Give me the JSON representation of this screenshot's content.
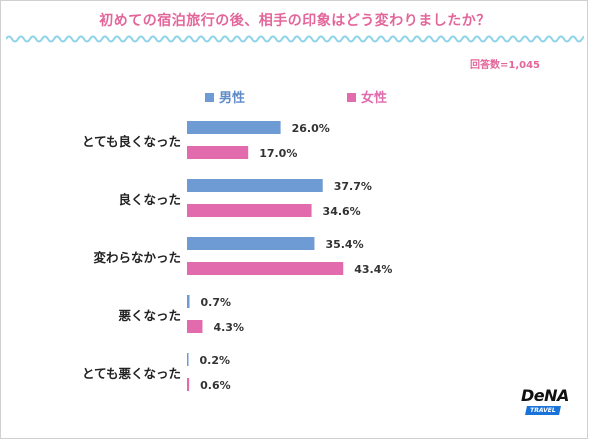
{
  "chart_data": {
    "type": "bar",
    "orientation": "horizontal",
    "title": "初めての宿泊旅行の後、相手の印象はどう変わりましたか？",
    "note": "回答数=1,045",
    "categories": [
      "とても良くなった",
      "良くなった",
      "変わらなかった",
      "悪くなった",
      "とても悪くなった"
    ],
    "series": [
      {
        "name": "男性",
        "color": "#6f9bd4",
        "values": [
          26.0,
          37.7,
          35.4,
          0.7,
          0.2
        ]
      },
      {
        "name": "女性",
        "color": "#e16bad",
        "values": [
          17.0,
          34.6,
          43.4,
          4.3,
          0.6
        ]
      }
    ],
    "value_suffix": "%",
    "legend_position": "top",
    "grid": false
  },
  "logo": {
    "main": "DeNA",
    "sub": "TRAVEL"
  }
}
